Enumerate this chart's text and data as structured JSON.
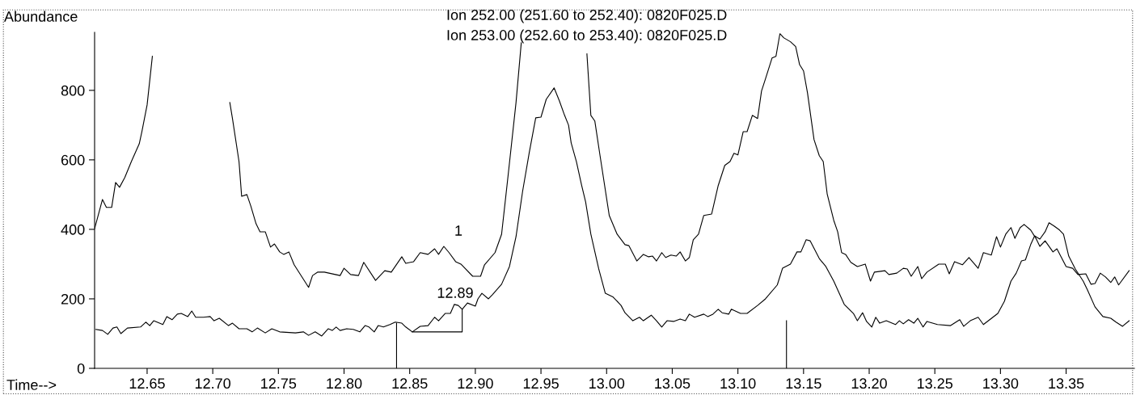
{
  "chart_data": {
    "type": "line",
    "xlabel": "Time-->",
    "ylabel": "Abundance",
    "xlim": [
      12.61,
      13.402
    ],
    "xticks": [
      {
        "value": 12.65,
        "label": "12.65"
      },
      {
        "value": 12.7,
        "label": "12.70"
      },
      {
        "value": 12.75,
        "label": "12.75"
      },
      {
        "value": 12.8,
        "label": "12.80"
      },
      {
        "value": 12.85,
        "label": "12.85"
      },
      {
        "value": 12.9,
        "label": "12.90"
      },
      {
        "value": 12.95,
        "label": "12.95"
      },
      {
        "value": 13.0,
        "label": "13.00"
      },
      {
        "value": 13.05,
        "label": "13.05"
      },
      {
        "value": 13.1,
        "label": "13.10"
      },
      {
        "value": 13.15,
        "label": "13.15"
      },
      {
        "value": 13.2,
        "label": "13.20"
      },
      {
        "value": 13.25,
        "label": "13.25"
      },
      {
        "value": 13.3,
        "label": "13.30"
      },
      {
        "value": 13.35,
        "label": "13.35"
      }
    ],
    "ylim": [
      0,
      967
    ],
    "yticks": [
      0,
      200,
      400,
      600,
      800
    ],
    "grid": false,
    "line_style": "solid",
    "marker": "none",
    "annotations": [
      "Ion 252.00 (251.60 to 252.40): 0820F025.D",
      "Ion 253.00 (252.60 to 253.40): 0820F025.D",
      "1",
      "12.89"
    ],
    "series": [
      {
        "color": "#000000",
        "x": [
          12.61,
          12.616,
          12.619,
          12.623,
          12.626,
          12.629,
          12.633,
          12.638,
          12.644,
          12.646,
          12.65,
          12.654,
          12.657,
          12.682,
          12.708,
          12.713,
          12.715,
          12.72,
          12.722,
          12.726,
          12.729,
          12.733,
          12.736,
          12.74,
          12.744,
          12.747,
          12.751,
          12.754,
          12.758,
          12.762,
          12.773,
          12.776,
          12.78,
          12.785,
          12.797,
          12.8,
          12.805,
          12.811,
          12.815,
          12.824,
          12.831,
          12.836,
          12.844,
          12.847,
          12.853,
          12.858,
          12.864,
          12.869,
          12.872,
          12.876,
          12.88,
          12.885,
          12.889,
          12.898,
          12.904,
          12.907,
          12.915,
          12.92,
          12.925,
          12.931,
          12.935,
          12.936,
          12.96,
          12.984,
          12.985,
          12.988,
          12.991,
          12.995,
          13.002,
          13.008,
          13.014,
          13.017,
          13.023,
          13.028,
          13.032,
          13.035,
          13.038,
          13.042,
          13.045,
          13.049,
          13.053,
          13.056,
          13.06,
          13.063,
          13.066,
          13.07,
          13.074,
          13.08,
          13.085,
          13.09,
          13.094,
          13.097,
          13.1,
          13.104,
          13.107,
          13.111,
          13.115,
          13.118,
          13.121,
          13.126,
          13.129,
          13.132,
          13.135,
          13.14,
          13.144,
          13.147,
          13.15,
          13.153,
          13.158,
          13.162,
          13.165,
          13.168,
          13.173,
          13.176,
          13.179,
          13.182,
          13.186,
          13.191,
          13.197,
          13.201,
          13.204,
          13.212,
          13.215,
          13.221,
          13.226,
          13.229,
          13.232,
          13.237,
          13.24,
          13.244,
          13.253,
          13.258,
          13.261,
          13.265,
          13.271,
          13.276,
          13.283,
          13.287,
          13.293,
          13.297,
          13.3,
          13.304,
          13.308,
          13.311,
          13.315,
          13.318,
          13.323,
          13.327,
          13.33,
          13.334,
          13.34,
          13.343,
          13.35,
          13.355,
          13.359,
          13.365,
          13.369,
          13.372,
          13.376,
          13.38,
          13.384,
          13.387,
          13.39,
          13.398
        ],
        "values": [
          402,
          486,
          463,
          463,
          535,
          521,
          549,
          595,
          646,
          681,
          758,
          898,
          null,
          null,
          null,
          765,
          719,
          595,
          495,
          500,
          467,
          416,
          393,
          393,
          349,
          358,
          335,
          328,
          335,
          298,
          233,
          267,
          277,
          277,
          267,
          288,
          270,
          267,
          305,
          253,
          281,
          277,
          321,
          302,
          307,
          333,
          328,
          344,
          328,
          351,
          333,
          307,
          300,
          265,
          265,
          298,
          333,
          386,
          556,
          765,
          937,
          null,
          null,
          null,
          905,
          728,
          712,
          612,
          440,
          386,
          356,
          353,
          309,
          328,
          321,
          323,
          309,
          333,
          319,
          326,
          323,
          335,
          309,
          319,
          370,
          386,
          440,
          444,
          526,
          584,
          595,
          619,
          614,
          681,
          681,
          728,
          719,
          798,
          833,
          893,
          898,
          963,
          951,
          940,
          926,
          874,
          856,
          793,
          658,
          612,
          595,
          502,
          426,
          393,
          333,
          328,
          305,
          293,
          300,
          251,
          277,
          281,
          270,
          274,
          288,
          286,
          265,
          293,
          258,
          277,
          300,
          300,
          272,
          307,
          298,
          319,
          288,
          333,
          326,
          379,
          349,
          386,
          405,
          374,
          405,
          414,
          398,
          374,
          351,
          367,
          335,
          344,
          293,
          288,
          270,
          272,
          242,
          244,
          274,
          263,
          247,
          263,
          240,
          281
        ]
      },
      {
        "color": "#000000",
        "x": [
          12.611,
          12.616,
          12.62,
          12.624,
          12.627,
          12.63,
          12.635,
          12.645,
          12.649,
          12.652,
          12.655,
          12.662,
          12.665,
          12.669,
          12.673,
          12.676,
          12.681,
          12.684,
          12.687,
          12.693,
          12.698,
          12.701,
          12.705,
          12.712,
          12.715,
          12.72,
          12.726,
          12.73,
          12.734,
          12.74,
          12.745,
          12.751,
          12.763,
          12.769,
          12.773,
          12.778,
          12.783,
          12.788,
          12.791,
          12.794,
          12.797,
          12.802,
          12.807,
          12.812,
          12.816,
          12.819,
          12.823,
          12.826,
          12.83,
          12.835,
          12.839,
          12.844,
          12.847,
          12.852,
          12.858,
          12.864,
          12.869,
          12.872,
          12.877,
          12.881,
          12.884,
          12.887,
          12.89,
          12.894,
          12.9,
          12.902,
          12.905,
          12.91,
          12.913,
          12.92,
          12.926,
          12.931,
          12.936,
          12.941,
          12.946,
          12.95,
          12.954,
          12.96,
          12.964,
          12.968,
          12.971,
          12.973,
          12.977,
          12.981,
          12.984,
          12.988,
          12.994,
          12.999,
          13.005,
          13.011,
          13.014,
          13.02,
          13.025,
          13.028,
          13.034,
          13.038,
          13.042,
          13.046,
          13.051,
          13.056,
          13.06,
          13.063,
          13.067,
          13.074,
          13.077,
          13.081,
          13.085,
          13.088,
          13.093,
          13.095,
          13.102,
          13.107,
          13.115,
          13.121,
          13.13,
          13.134,
          13.14,
          13.145,
          13.148,
          13.152,
          13.155,
          13.162,
          13.167,
          13.173,
          13.181,
          13.188,
          13.191,
          13.195,
          13.198,
          13.202,
          13.205,
          13.208,
          13.213,
          13.22,
          13.223,
          13.226,
          13.23,
          13.234,
          13.237,
          13.241,
          13.244,
          13.252,
          13.262,
          13.269,
          13.272,
          13.277,
          13.283,
          13.287,
          13.298,
          13.303,
          13.308,
          13.312,
          13.316,
          13.319,
          13.323,
          13.326,
          13.33,
          13.334,
          13.337,
          13.341,
          13.345,
          13.348,
          13.352,
          13.357,
          13.363,
          13.366,
          13.372,
          13.378,
          13.384,
          13.388,
          13.393,
          13.398
        ],
        "values": [
          112,
          109,
          98,
          116,
          119,
          100,
          116,
          119,
          133,
          123,
          137,
          126,
          149,
          140,
          156,
          158,
          149,
          165,
          147,
          147,
          149,
          137,
          144,
          123,
          130,
          114,
          114,
          105,
          116,
          102,
          114,
          105,
          102,
          105,
          95,
          105,
          93,
          114,
          109,
          119,
          109,
          114,
          112,
          105,
          123,
          119,
          105,
          123,
          119,
          126,
          133,
          130,
          119,
          105,
          121,
          123,
          147,
          137,
          158,
          158,
          184,
          181,
          170,
          188,
          179,
          200,
          216,
          200,
          212,
          242,
          293,
          379,
          509,
          619,
          721,
          723,
          774,
          807,
          770,
          728,
          700,
          649,
          595,
          526,
          479,
          386,
          286,
          216,
          205,
          181,
          160,
          137,
          147,
          137,
          153,
          137,
          119,
          137,
          135,
          142,
          137,
          156,
          147,
          156,
          149,
          156,
          170,
          160,
          156,
          170,
          158,
          158,
          181,
          200,
          240,
          288,
          300,
          335,
          335,
          370,
          367,
          316,
          293,
          251,
          184,
          158,
          137,
          160,
          135,
          119,
          147,
          130,
          137,
          126,
          137,
          128,
          140,
          130,
          144,
          119,
          135,
          126,
          123,
          140,
          121,
          137,
          147,
          126,
          158,
          193,
          251,
          274,
          309,
          312,
          356,
          381,
          372,
          393,
          419,
          409,
          398,
          386,
          323,
          286,
          251,
          228,
          177,
          149,
          144,
          133,
          121,
          137
        ]
      },
      {
        "color": "#000000",
        "x": [
          12.852,
          12.89,
          12.89
        ],
        "values": [
          105,
          105,
          170
        ]
      },
      {
        "color": "#000000",
        "x": [
          12.84,
          12.84
        ],
        "values": [
          0,
          130
        ]
      },
      {
        "color": "#000000",
        "x": [
          13.137,
          13.137
        ],
        "values": [
          0,
          137
        ]
      }
    ]
  }
}
